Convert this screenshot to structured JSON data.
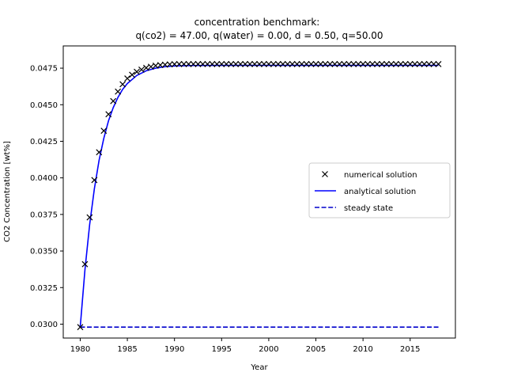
{
  "chart_data": {
    "type": "line",
    "title_line1": "concentration benchmark:",
    "title_line2": "q(co2) = 47.00, q(water) = 0.00, d = 0.50, q=50.00",
    "xlabel": "Year",
    "ylabel": "CO2 Concentration [wt%]",
    "xlim": [
      1978.2,
      2019.8
    ],
    "ylim": [
      0.02905,
      0.04902
    ],
    "xticks": [
      1980,
      1985,
      1990,
      1995,
      2000,
      2005,
      2010,
      2015
    ],
    "yticks": [
      0.03,
      0.0325,
      0.035,
      0.0375,
      0.04,
      0.0425,
      0.045,
      0.0475
    ],
    "ytick_labels": [
      "0.0300",
      "0.0325",
      "0.0350",
      "0.0375",
      "0.0400",
      "0.0425",
      "0.0450",
      "0.0475"
    ],
    "grid": false,
    "legend_position": "center-right",
    "series": [
      {
        "name": "numerical solution",
        "style": "markers",
        "marker": "x",
        "color": "#000000",
        "x": [
          1980.0,
          1980.5,
          1981.0,
          1981.5,
          1982.0,
          1982.5,
          1983.0,
          1983.5,
          1984.0,
          1984.5,
          1985.0,
          1985.5,
          1986.0,
          1986.5,
          1987.0,
          1987.5,
          1988.0,
          1988.5,
          1989.0,
          1989.5,
          1990.0,
          1990.5,
          1991.0,
          1991.5,
          1992.0,
          1992.5,
          1993.0,
          1993.5,
          1994.0,
          1994.5,
          1995.0,
          1995.5,
          1996.0,
          1996.5,
          1997.0,
          1997.5,
          1998.0,
          1998.5,
          1999.0,
          1999.5,
          2000.0,
          2000.5,
          2001.0,
          2001.5,
          2002.0,
          2002.5,
          2003.0,
          2003.5,
          2004.0,
          2004.5,
          2005.0,
          2005.5,
          2006.0,
          2006.5,
          2007.0,
          2007.5,
          2008.0,
          2008.5,
          2009.0,
          2009.5,
          2010.0,
          2010.5,
          2011.0,
          2011.5,
          2012.0,
          2012.5,
          2013.0,
          2013.5,
          2014.0,
          2014.5,
          2015.0,
          2015.5,
          2016.0,
          2016.5,
          2017.0,
          2017.5,
          2018.0
        ],
        "y": [
          0.0298,
          0.0341,
          0.0373,
          0.03985,
          0.04175,
          0.04322,
          0.04435,
          0.04525,
          0.0459,
          0.0464,
          0.0468,
          0.04705,
          0.04725,
          0.0474,
          0.04752,
          0.0476,
          0.04767,
          0.04771,
          0.04774,
          0.04776,
          0.04777,
          0.04778,
          0.04778,
          0.04778,
          0.04778,
          0.04778,
          0.04778,
          0.04778,
          0.04778,
          0.04778,
          0.04778,
          0.04778,
          0.04778,
          0.04778,
          0.04778,
          0.04778,
          0.04778,
          0.04778,
          0.04778,
          0.04778,
          0.04778,
          0.04778,
          0.04778,
          0.04778,
          0.04778,
          0.04778,
          0.04778,
          0.04778,
          0.04778,
          0.04778,
          0.04778,
          0.04778,
          0.04778,
          0.04778,
          0.04778,
          0.04778,
          0.04778,
          0.04778,
          0.04778,
          0.04778,
          0.04778,
          0.04778,
          0.04778,
          0.04778,
          0.04778,
          0.04778,
          0.04778,
          0.04778,
          0.04778,
          0.04778,
          0.04778,
          0.04778,
          0.04778,
          0.04778,
          0.04778,
          0.04778,
          0.04778
        ]
      },
      {
        "name": "analytical solution",
        "style": "solid",
        "color": "#0000ff",
        "x": [
          1980.0,
          1980.5,
          1981.0,
          1981.5,
          1982.0,
          1982.5,
          1983.0,
          1983.5,
          1984.0,
          1984.5,
          1985.0,
          1986.0,
          1987.0,
          1988.0,
          1989.0,
          1990.0,
          1992.0,
          1995.0,
          2000.0,
          2005.0,
          2010.0,
          2015.0,
          2018.0
        ],
        "y": [
          0.0298,
          0.0337,
          0.0368,
          0.03925,
          0.0412,
          0.0427,
          0.0439,
          0.0448,
          0.0455,
          0.04605,
          0.04645,
          0.047,
          0.04732,
          0.0475,
          0.0476,
          0.04765,
          0.04768,
          0.04769,
          0.04769,
          0.04769,
          0.04769,
          0.04769,
          0.04769
        ]
      },
      {
        "name": "steady state",
        "style": "dashed",
        "color": "#0000cc",
        "x": [
          1980.0,
          2018.0
        ],
        "y": [
          0.0298,
          0.0298
        ]
      }
    ]
  }
}
